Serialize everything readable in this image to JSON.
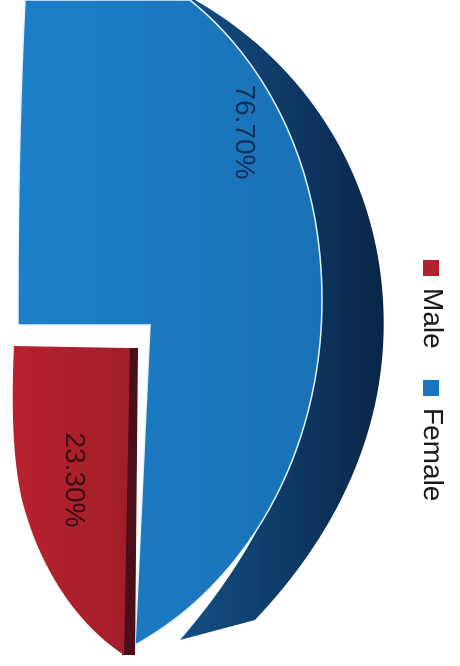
{
  "chart_data": {
    "type": "pie",
    "categories": [
      "Female",
      "Male"
    ],
    "values": [
      76.7,
      23.3
    ],
    "labels": [
      "76.70%",
      "23.30%"
    ],
    "colors": [
      "#1b75bb",
      "#b0222e"
    ],
    "legend": [
      {
        "name": "Female",
        "color": "#1b75bb"
      },
      {
        "name": "Male",
        "color": "#b0222e"
      }
    ],
    "legend_position": "right",
    "style": "3d-exploded",
    "rotated": true
  }
}
